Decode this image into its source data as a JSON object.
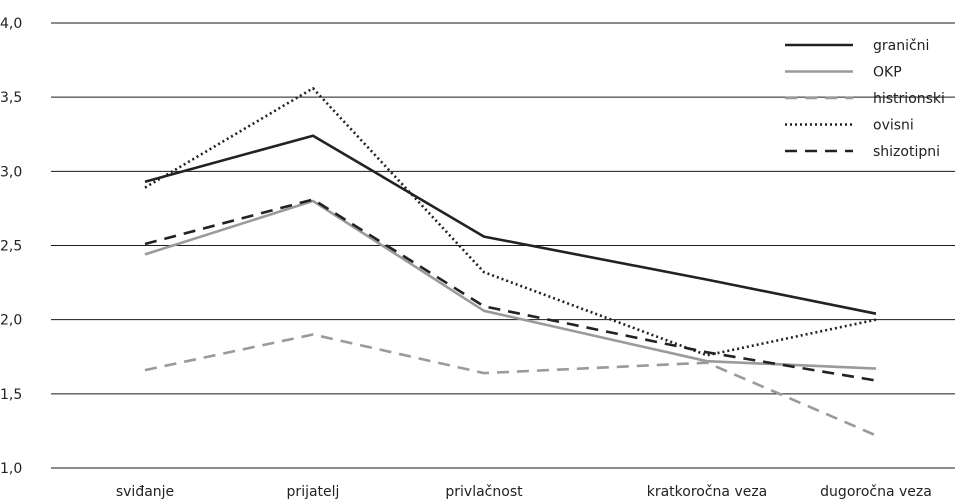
{
  "chart_data": {
    "type": "line",
    "categories": [
      "sviđanje",
      "prijatelj",
      "privlačnost",
      "kratkoročna veza",
      "dugoročna veza"
    ],
    "y_ticks": [
      "1,0",
      "1,5",
      "2,0",
      "2,5",
      "3,0",
      "3,5",
      "4,0"
    ],
    "ylim": [
      1.0,
      4.0
    ],
    "grid": "horizontal",
    "legend_position": "top-right",
    "series": [
      {
        "name": "granični",
        "values": [
          2.93,
          3.24,
          2.56,
          2.27,
          2.04
        ],
        "color": "#222222",
        "line_style": "solid"
      },
      {
        "name": "OKP",
        "values": [
          2.44,
          2.8,
          2.06,
          1.72,
          1.67
        ],
        "color": "#9a9a9a",
        "line_style": "solid"
      },
      {
        "name": "histrionski",
        "values": [
          1.66,
          1.9,
          1.64,
          1.71,
          1.22
        ],
        "color": "#9a9a9a",
        "line_style": "dashed"
      },
      {
        "name": "ovisni",
        "values": [
          2.89,
          3.56,
          2.32,
          1.76,
          2.0
        ],
        "color": "#222222",
        "line_style": "dotted"
      },
      {
        "name": "shizotipni",
        "values": [
          2.51,
          2.81,
          2.09,
          1.78,
          1.59
        ],
        "color": "#222222",
        "line_style": "dashed"
      }
    ]
  }
}
